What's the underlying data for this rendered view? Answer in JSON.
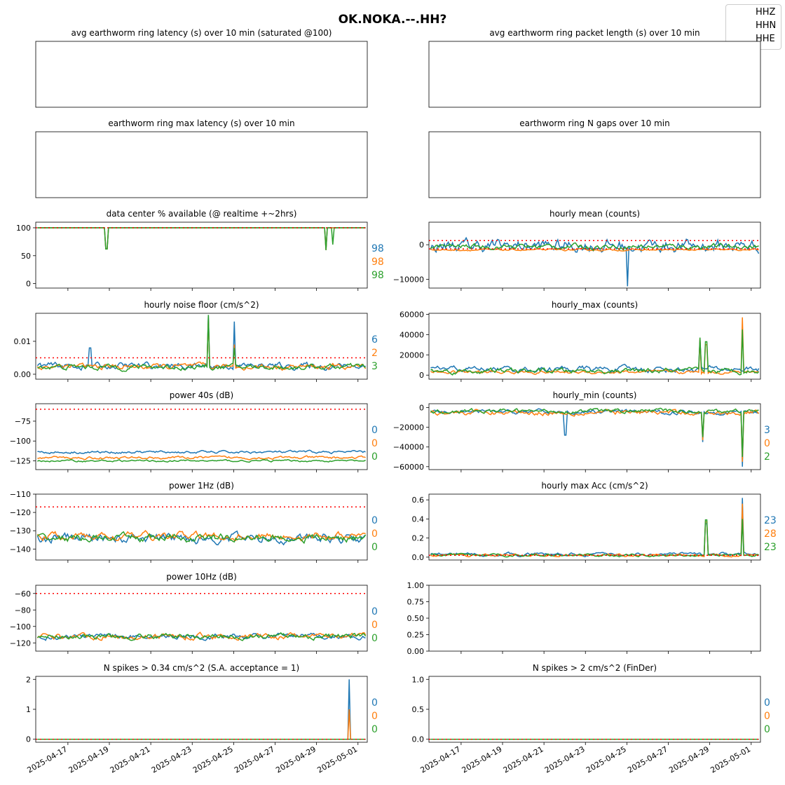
{
  "title": "OK.NOKA.--.HH?",
  "legend": [
    "HHZ",
    "HHN",
    "HHE"
  ],
  "colors": {
    "HHZ": "#1f77b4",
    "HHN": "#ff7f0e",
    "HHE": "#2ca02c",
    "threshold": "#ff0000"
  },
  "x_tick_labels": [
    "2025-04-17",
    "2025-04-19",
    "2025-04-21",
    "2025-04-23",
    "2025-04-25",
    "2025-04-27",
    "2025-04-29",
    "2025-05-01"
  ],
  "chart_data": [
    {
      "type": "line",
      "title": "avg earthworm ring latency (s)   over 10 min (saturated @100)",
      "empty": true,
      "ticks": [],
      "side_values": []
    },
    {
      "type": "line",
      "title": "avg earthworm ring packet length (s)   over 10 min",
      "empty": true,
      "ticks": [],
      "side_values": []
    },
    {
      "type": "line",
      "title": "earthworm ring max latency (s)   over 10 min",
      "empty": true,
      "ticks": [],
      "side_values": []
    },
    {
      "type": "line",
      "title": "earthworm ring N gaps   over 10 min",
      "empty": true,
      "ticks": [],
      "side_values": []
    },
    {
      "type": "line",
      "title": "data center % available (@ realtime +~2hrs)",
      "ylim": [
        -8,
        110
      ],
      "ticks": [
        "0",
        "50",
        "100"
      ],
      "tick_values": [
        0,
        50,
        100
      ],
      "threshold": 100,
      "side_values": [
        "98",
        "98",
        "98"
      ],
      "series": {
        "HHZ": {
          "base": 100,
          "noise": 0,
          "dips": [
            [
              0.21,
              62
            ],
            [
              0.88,
              60
            ]
          ]
        },
        "HHN": {
          "base": 100,
          "noise": 0,
          "dips": [
            [
              0.21,
              62
            ],
            [
              0.88,
              60
            ]
          ]
        },
        "HHE": {
          "base": 100,
          "noise": 0,
          "dips": [
            [
              0.21,
              62
            ],
            [
              0.88,
              60
            ],
            [
              0.9,
              70
            ]
          ]
        }
      }
    },
    {
      "type": "line",
      "title": "hourly mean (counts)",
      "ylim": [
        -12500,
        6500
      ],
      "ticks": [
        "−10000",
        "0"
      ],
      "tick_values": [
        -10000,
        0
      ],
      "threshold": 1200,
      "threshold2": -1200,
      "side_values": [],
      "series": {
        "HHZ": {
          "base": -300,
          "noise": 2200,
          "dips": [
            [
              0.6,
              -12000
            ]
          ]
        },
        "HHN": {
          "base": -1500,
          "noise": 300,
          "dips": []
        },
        "HHE": {
          "base": -500,
          "noise": 900,
          "dips": []
        }
      }
    },
    {
      "type": "line",
      "title": "hourly noise floor (cm/s^2)",
      "ylim": [
        -0.0015,
        0.0185
      ],
      "ticks": [
        "0.00",
        "0.01"
      ],
      "tick_values": [
        0,
        0.01
      ],
      "threshold": 0.005,
      "side_values": [
        "6",
        "2",
        "3"
      ],
      "series": {
        "HHZ": {
          "base": 0.0025,
          "noise": 0.0012,
          "dips": [
            [
              0.52,
              0.018
            ],
            [
              0.6,
              0.016
            ],
            [
              0.16,
              0.008
            ]
          ]
        },
        "HHN": {
          "base": 0.0023,
          "noise": 0.001,
          "dips": [
            [
              0.52,
              0.017
            ],
            [
              0.6,
              0.009
            ]
          ]
        },
        "HHE": {
          "base": 0.0022,
          "noise": 0.001,
          "dips": [
            [
              0.52,
              0.018
            ],
            [
              0.6,
              0.008
            ]
          ]
        }
      }
    },
    {
      "type": "line",
      "title": "hourly_max (counts)",
      "ylim": [
        -4000,
        61000
      ],
      "ticks": [
        "0",
        "20000",
        "40000",
        "60000"
      ],
      "tick_values": [
        0,
        20000,
        40000,
        60000
      ],
      "threshold": null,
      "side_values": [],
      "series": {
        "HHZ": {
          "base": 6000,
          "noise": 3500,
          "dips": [
            [
              0.82,
              35000
            ]
          ]
        },
        "HHN": {
          "base": 3000,
          "noise": 2000,
          "dips": [
            [
              0.95,
              57000
            ],
            [
              0.82,
              36000
            ],
            [
              0.84,
              30000
            ]
          ]
        },
        "HHE": {
          "base": 4000,
          "noise": 3000,
          "dips": [
            [
              0.82,
              37000
            ],
            [
              0.84,
              33000
            ],
            [
              0.95,
              45000
            ]
          ]
        }
      }
    },
    {
      "type": "line",
      "title": "power 40s (dB)",
      "ylim": [
        -136,
        -53
      ],
      "ticks": [
        "−125",
        "−100",
        "−75"
      ],
      "tick_values": [
        -125,
        -100,
        -75
      ],
      "threshold": -60,
      "side_values": [
        "0",
        "0",
        "0"
      ],
      "series": {
        "HHZ": {
          "base": -114,
          "noise": 2,
          "dips": []
        },
        "HHN": {
          "base": -121,
          "noise": 2,
          "dips": []
        },
        "HHE": {
          "base": -125,
          "noise": 1.5,
          "dips": []
        }
      }
    },
    {
      "type": "line",
      "title": "hourly_min (counts)",
      "ylim": [
        -63000,
        4000
      ],
      "ticks": [
        "−60000",
        "−40000",
        "−20000",
        "0"
      ],
      "tick_values": [
        -60000,
        -40000,
        -20000,
        0
      ],
      "threshold": null,
      "side_values": [
        "3",
        "0",
        "2"
      ],
      "series": {
        "HHZ": {
          "base": -4500,
          "noise": 2500,
          "dips": [
            [
              0.95,
              -60000
            ],
            [
              0.41,
              -28000
            ],
            [
              0.83,
              -35000
            ]
          ]
        },
        "HHN": {
          "base": -5000,
          "noise": 3000,
          "dips": [
            [
              0.95,
              -55000
            ],
            [
              0.83,
              -33000
            ]
          ]
        },
        "HHE": {
          "base": -3500,
          "noise": 2500,
          "dips": [
            [
              0.95,
              -50000
            ],
            [
              0.83,
              -30000
            ]
          ]
        }
      }
    },
    {
      "type": "line",
      "title": "power 1Hz (dB)",
      "ylim": [
        -146,
        -110
      ],
      "ticks": [
        "−140",
        "−130",
        "−120",
        "−110"
      ],
      "tick_values": [
        -140,
        -130,
        -120,
        -110
      ],
      "threshold": -117,
      "side_values": [
        "0",
        "0",
        "0"
      ],
      "series": {
        "HHZ": {
          "base": -134,
          "noise": 3,
          "dips": []
        },
        "HHN": {
          "base": -133,
          "noise": 2.5,
          "dips": []
        },
        "HHE": {
          "base": -134,
          "noise": 2.5,
          "dips": []
        }
      }
    },
    {
      "type": "line",
      "title": "hourly max Acc (cm/s^2)",
      "ylim": [
        -0.03,
        0.66
      ],
      "ticks": [
        "0.0",
        "0.2",
        "0.4",
        "0.6"
      ],
      "tick_values": [
        0,
        0.2,
        0.4,
        0.6
      ],
      "threshold": 0.02,
      "side_values": [
        "23",
        "28",
        "23"
      ],
      "series": {
        "HHZ": {
          "base": 0.03,
          "noise": 0.02,
          "dips": [
            [
              0.95,
              0.62
            ],
            [
              0.84,
              0.35
            ]
          ]
        },
        "HHN": {
          "base": 0.02,
          "noise": 0.015,
          "dips": [
            [
              0.95,
              0.56
            ],
            [
              0.84,
              0.37
            ]
          ]
        },
        "HHE": {
          "base": 0.02,
          "noise": 0.015,
          "dips": [
            [
              0.95,
              0.4
            ],
            [
              0.84,
              0.39
            ]
          ]
        }
      }
    },
    {
      "type": "line",
      "title": "power 10Hz (dB)",
      "ylim": [
        -130,
        -50
      ],
      "ticks": [
        "−120",
        "−100",
        "−80",
        "−60"
      ],
      "tick_values": [
        -120,
        -100,
        -80,
        -60
      ],
      "threshold": -60,
      "side_values": [
        "0",
        "0",
        "0"
      ],
      "series": {
        "HHZ": {
          "base": -112,
          "noise": 4,
          "dips": []
        },
        "HHN": {
          "base": -112,
          "noise": 4,
          "dips": []
        },
        "HHE": {
          "base": -112,
          "noise": 4,
          "dips": []
        }
      }
    },
    {
      "type": "line",
      "title": "",
      "empty": true,
      "ylim": [
        0,
        1
      ],
      "ticks": [
        "0.00",
        "0.25",
        "0.50",
        "0.75",
        "1.00"
      ],
      "tick_values": [
        0,
        0.25,
        0.5,
        0.75,
        1
      ],
      "side_values": []
    },
    {
      "type": "line",
      "title": "N spikes > 0.34 cm/s^2 (S.A. acceptance = 1)",
      "ylim": [
        -0.1,
        2.1
      ],
      "ticks": [
        "0",
        "1",
        "2"
      ],
      "tick_values": [
        0,
        1,
        2
      ],
      "threshold": 0,
      "side_values": [
        "0",
        "0",
        "0"
      ],
      "series": {
        "HHZ": {
          "base": 0,
          "noise": 0,
          "dips": [
            [
              0.95,
              2
            ]
          ]
        },
        "HHN": {
          "base": 0,
          "noise": 0,
          "dips": [
            [
              0.95,
              1
            ]
          ]
        },
        "HHE": {
          "base": 0,
          "noise": 0,
          "dips": []
        }
      }
    },
    {
      "type": "line",
      "title": "N spikes > 2 cm/s^2 (FinDer)",
      "ylim": [
        -0.05,
        1.05
      ],
      "ticks": [
        "0.0",
        "0.5",
        "1.0"
      ],
      "tick_values": [
        0,
        0.5,
        1
      ],
      "threshold": 0,
      "side_values": [
        "0",
        "0",
        "0"
      ],
      "series": {
        "HHZ": {
          "base": 0,
          "noise": 0,
          "dips": []
        },
        "HHN": {
          "base": 0,
          "noise": 0,
          "dips": []
        },
        "HHE": {
          "base": 0,
          "noise": 0,
          "dips": []
        }
      }
    }
  ]
}
